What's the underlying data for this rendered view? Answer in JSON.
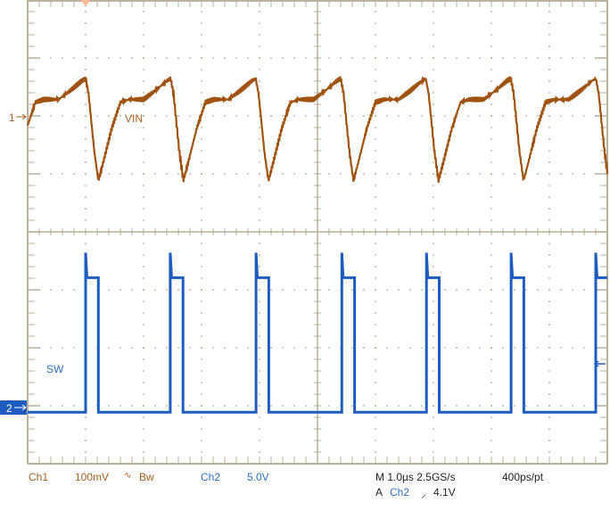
{
  "chart_data": {
    "type": "line",
    "xlim_us": [
      0,
      10
    ],
    "grid": true,
    "divisions": {
      "x": 10,
      "y": 8
    },
    "colors": {
      "ch1": "#a0520f",
      "ch2": "#1f5cc0",
      "grid": "#b8b19b"
    },
    "series": [
      {
        "name": "VIN",
        "channel": "1",
        "units": "mV",
        "scale_per_div": 100,
        "cycle_edges_us": [
          1.0,
          2.46,
          3.94,
          5.42,
          6.88,
          8.34,
          9.8
        ],
        "period_us": 1.467,
        "cycle_shape": {
          "t_us": [
            0,
            0.05,
            0.15,
            0.22,
            0.3,
            0.45,
            0.6,
            0.75,
            1.0,
            1.2,
            1.4,
            1.467
          ],
          "mV": [
            66,
            40,
            -60,
            -110,
            -80,
            -20,
            25,
            30,
            30,
            45,
            62,
            66
          ]
        }
      },
      {
        "name": "SW",
        "channel": "2",
        "units": "V",
        "scale_per_div": 5.0,
        "rising_edges_us": [
          1.0,
          2.46,
          3.94,
          5.42,
          6.88,
          8.34,
          9.8
        ],
        "pulse_width_us": 0.22,
        "high_V": 11.2,
        "low_V": -0.4
      }
    ]
  },
  "markers": {
    "ch1": "1",
    "ch2": "2"
  },
  "readout": {
    "ch1_label": "Ch1",
    "ch1_scale": "100mV",
    "ch1_coupling_symbol": "∿",
    "bw_label": "Bw",
    "ch2_label": "Ch2",
    "ch2_scale": "5.0V",
    "timebase": "M 1.0µs 2.5GS/s",
    "record": "400ps/pt",
    "trigger_prefix": "A",
    "trigger_source": "Ch2",
    "trigger_slope": "⸝",
    "trigger_level": "4.1V"
  }
}
